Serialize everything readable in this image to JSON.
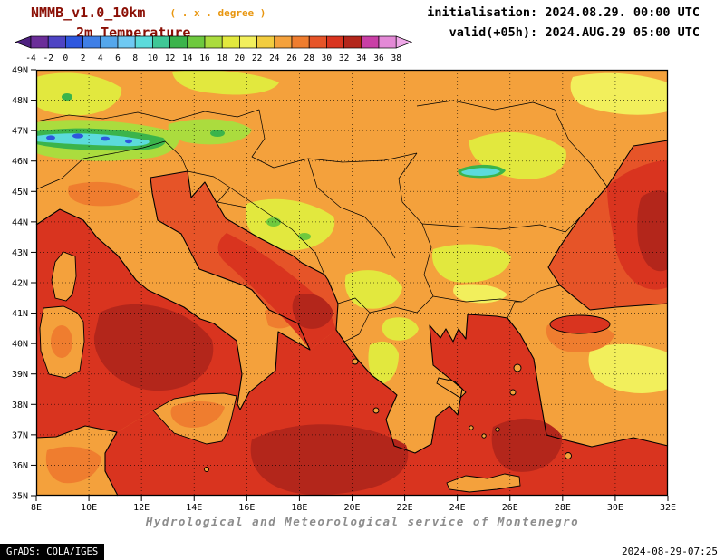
{
  "header": {
    "model": "NMMB_v1.0_10km",
    "model_note": "( . x . degree )",
    "variable": "2m Temperature",
    "init": "initialisation: 2024.08.29. 00:00 UTC",
    "valid": "valid(+05h): 2024.AUG.29 05:00 UTC",
    "title_color": "#8B0F05",
    "note_color": "#E8960F"
  },
  "colorbar": {
    "ticks": [
      "-4",
      "-2",
      "0",
      "2",
      "4",
      "6",
      "8",
      "10",
      "12",
      "14",
      "16",
      "18",
      "20",
      "22",
      "24",
      "26",
      "28",
      "30",
      "32",
      "34",
      "36",
      "38"
    ],
    "colors": [
      "#6B2E99",
      "#4E44C4",
      "#2E57DE",
      "#3F7FE6",
      "#55A7EC",
      "#6FC9F2",
      "#5BDBDB",
      "#3FC896",
      "#3BB44B",
      "#6EC93E",
      "#ABDC3E",
      "#E2E83E",
      "#F2EF5C",
      "#F2CC3F",
      "#F4A13C",
      "#EF7D2F",
      "#E65428",
      "#D9341F",
      "#B3261B",
      "#C93FA6",
      "#E389D6"
    ],
    "below_color": "#4E2180",
    "above_color": "#EFA8E8"
  },
  "map": {
    "y_ticks": [
      "49N",
      "48N",
      "47N",
      "46N",
      "45N",
      "44N",
      "43N",
      "42N",
      "41N",
      "40N",
      "39N",
      "38N",
      "37N",
      "36N",
      "35N"
    ],
    "x_ticks": [
      "8E",
      "10E",
      "12E",
      "14E",
      "16E",
      "18E",
      "20E",
      "22E",
      "24E",
      "26E",
      "28E",
      "30E",
      "32E"
    ]
  },
  "footer": {
    "credit": "Hydrological and Meteorological service of Montenegro",
    "credit_color": "#8C8C8C",
    "grads": "GrADS: COLA/IGES",
    "timestamp": "2024-08-29-07:25"
  }
}
